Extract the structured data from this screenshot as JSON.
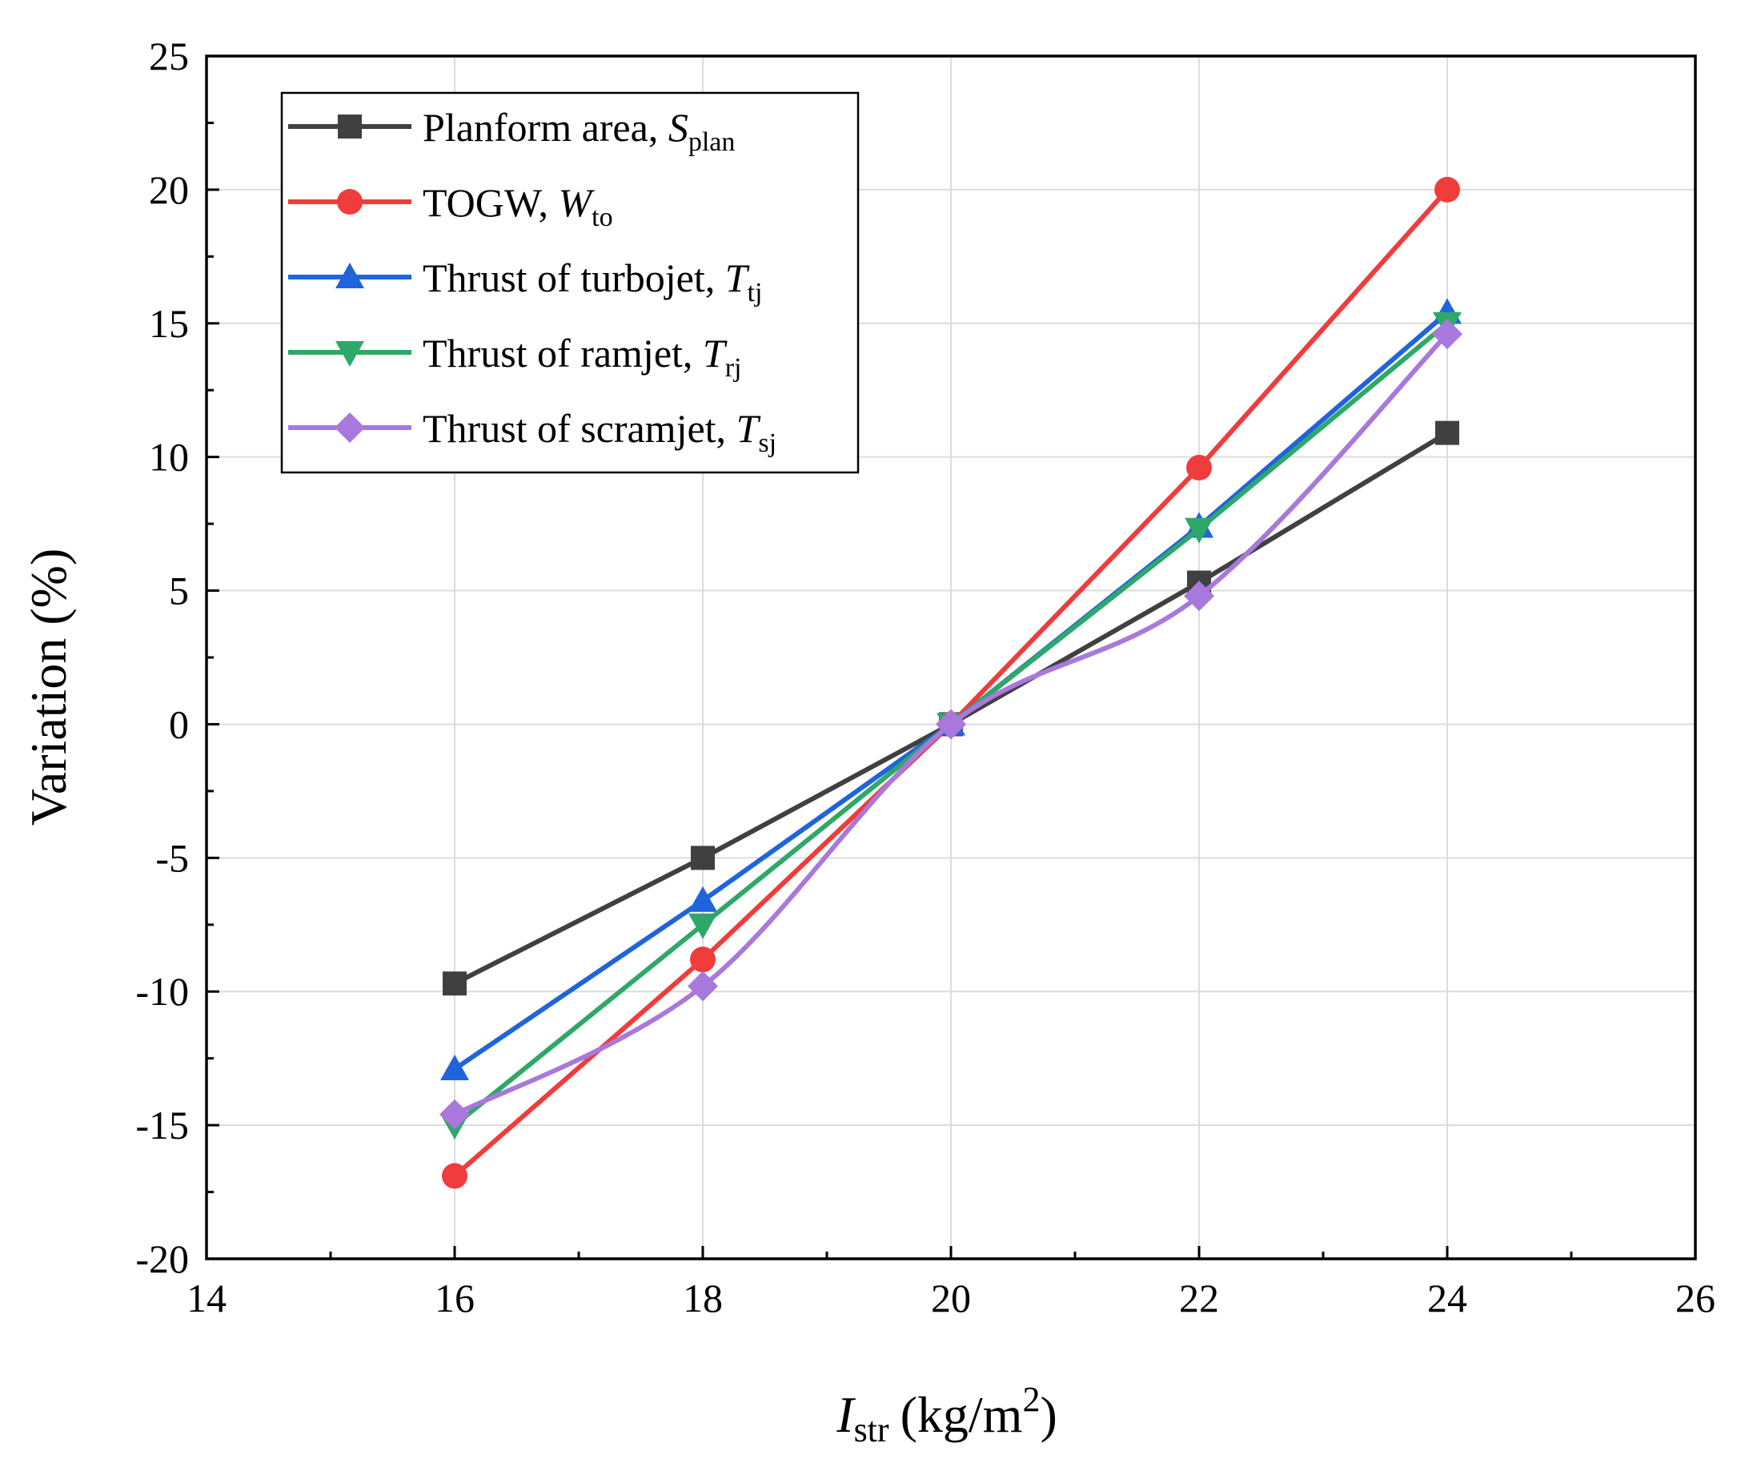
{
  "chart_data": {
    "type": "line",
    "title": "",
    "xlabel": {
      "main": "I",
      "sub": "str",
      "unit": "(kg/m",
      "sup": "2",
      "close": ")"
    },
    "ylabel": "Variation (%)",
    "xlim": [
      14,
      26
    ],
    "ylim": [
      -20,
      25
    ],
    "xticks": [
      14,
      16,
      18,
      20,
      22,
      24,
      26
    ],
    "yticks": [
      -20,
      -15,
      -10,
      -5,
      0,
      5,
      10,
      15,
      20,
      25
    ],
    "grid": true,
    "legend_position": "top-left",
    "x": [
      16,
      18,
      20,
      22,
      24
    ],
    "series": [
      {
        "name": "Planform area, ",
        "var": "S",
        "sub": "plan",
        "color": "#404040",
        "marker": "square",
        "smooth": false,
        "values": [
          -9.7,
          -5.0,
          0,
          5.3,
          10.9
        ]
      },
      {
        "name": "TOGW, ",
        "var": "W",
        "sub": "to",
        "color": "#f03c3c",
        "marker": "circle",
        "smooth": false,
        "values": [
          -16.9,
          -8.8,
          0,
          9.6,
          20.0
        ]
      },
      {
        "name": "Thrust of turbojet, ",
        "var": "T",
        "sub": "tj",
        "color": "#1f64dc",
        "marker": "triangle-up",
        "smooth": false,
        "values": [
          -12.9,
          -6.6,
          0,
          7.4,
          15.4
        ]
      },
      {
        "name": "Thrust of ramjet, ",
        "var": "T",
        "sub": "rj",
        "color": "#2ea868",
        "marker": "triangle-down",
        "smooth": false,
        "values": [
          -15.0,
          -7.5,
          0,
          7.3,
          15.0
        ]
      },
      {
        "name": "Thrust of scramjet, ",
        "var": "T",
        "sub": "sj",
        "color": "#a978dc",
        "marker": "diamond",
        "smooth": true,
        "values": [
          -14.6,
          -9.8,
          0,
          4.8,
          14.6
        ]
      }
    ]
  }
}
